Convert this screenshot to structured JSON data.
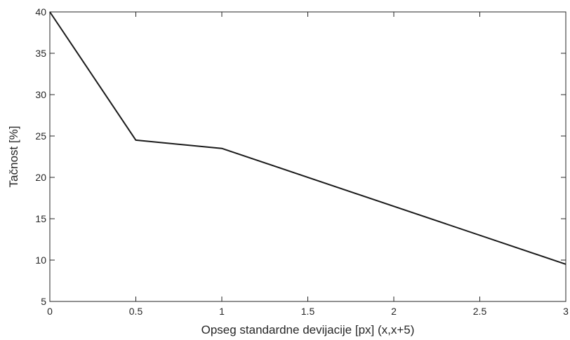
{
  "chart_data": {
    "type": "line",
    "xlabel": "Opseg standardne devijacije [px] (x,x+5)",
    "ylabel": "Tačnost [%]",
    "xlim": [
      0,
      3
    ],
    "ylim": [
      5,
      40
    ],
    "xticks": [
      "0",
      "0.5",
      "1",
      "1.5",
      "2",
      "2.5",
      "3"
    ],
    "yticks": [
      "5",
      "10",
      "15",
      "20",
      "25",
      "30",
      "35",
      "40"
    ],
    "grid": false,
    "series": [
      {
        "color": "#1a1a1a",
        "x": [
          0,
          0.5,
          1,
          3
        ],
        "y": [
          40,
          24.5,
          23.5,
          9.5
        ]
      }
    ]
  }
}
